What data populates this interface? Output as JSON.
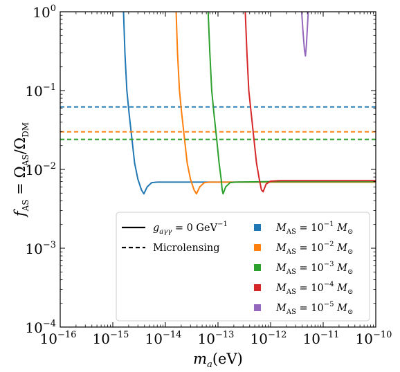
{
  "chart_data": {
    "type": "line",
    "x_axis": {
      "label": "m_a(eV)",
      "scale": "log",
      "range": [
        1e-16,
        1e-10
      ],
      "ticks": [
        {
          "value": 1e-16,
          "base": "10",
          "exp": "−16"
        },
        {
          "value": 1e-15,
          "base": "10",
          "exp": "−15"
        },
        {
          "value": 1e-14,
          "base": "10",
          "exp": "−14"
        },
        {
          "value": 1e-13,
          "base": "10",
          "exp": "−13"
        },
        {
          "value": 1e-12,
          "base": "10",
          "exp": "−12"
        },
        {
          "value": 1e-11,
          "base": "10",
          "exp": "−11"
        },
        {
          "value": 1e-10,
          "base": "10",
          "exp": "−10"
        }
      ]
    },
    "y_axis": {
      "label": "f_AS = Ω_AS/Ω_DM",
      "scale": "log",
      "range": [
        0.0001,
        1
      ],
      "ticks": [
        {
          "value": 0.0001,
          "base": "10",
          "exp": "−4"
        },
        {
          "value": 0.001,
          "base": "10",
          "exp": "−3"
        },
        {
          "value": 0.01,
          "base": "10",
          "exp": "−2"
        },
        {
          "value": 0.1,
          "base": "10",
          "exp": "−1"
        },
        {
          "value": 1,
          "base": "10",
          "exp": "0"
        }
      ]
    },
    "legend": {
      "placement": "bottom-right",
      "style_entries": [
        {
          "label": "g_aγγ = 0 GeV⁻¹",
          "style": "solid"
        },
        {
          "label": "Microlensing",
          "style": "dashed"
        }
      ],
      "mass_entries": [
        {
          "label": "M_AS = 10⁻¹ M_⊙",
          "color": "#1f77b4"
        },
        {
          "label": "M_AS = 10⁻² M_⊙",
          "color": "#ff7f0e"
        },
        {
          "label": "M_AS = 10⁻³ M_⊙",
          "color": "#2ca02c"
        },
        {
          "label": "M_AS = 10⁻⁴ M_⊙",
          "color": "#d62728"
        },
        {
          "label": "M_AS = 10⁻⁵ M_⊙",
          "color": "#9467bd"
        }
      ]
    },
    "series": [
      {
        "name": "M_AS = 10⁻¹ M_⊙",
        "color": "#1f77b4",
        "microlensing": 0.062,
        "solid": [
          [
            1.6e-15,
            1.0
          ],
          [
            1.7e-15,
            0.3
          ],
          [
            1.85e-15,
            0.1
          ],
          [
            2.05e-15,
            0.05
          ],
          [
            2.3e-15,
            0.025
          ],
          [
            2.6e-15,
            0.012
          ],
          [
            3e-15,
            0.0075
          ],
          [
            3.5e-15,
            0.0055
          ],
          [
            3.9e-15,
            0.0049
          ],
          [
            4.5e-15,
            0.006
          ],
          [
            5.5e-15,
            0.0068
          ],
          [
            7e-15,
            0.0069
          ],
          [
            1e-13,
            0.0069
          ],
          [
            1e-10,
            0.0069
          ]
        ]
      },
      {
        "name": "M_AS = 10⁻² M_⊙",
        "color": "#ff7f0e",
        "microlensing": 0.03,
        "solid": [
          [
            1.6e-14,
            1.0
          ],
          [
            1.7e-14,
            0.3
          ],
          [
            1.85e-14,
            0.1
          ],
          [
            2.05e-14,
            0.05
          ],
          [
            2.3e-14,
            0.025
          ],
          [
            2.6e-14,
            0.012
          ],
          [
            3e-14,
            0.0075
          ],
          [
            3.5e-14,
            0.0055
          ],
          [
            3.9e-14,
            0.0049
          ],
          [
            4.5e-14,
            0.006
          ],
          [
            5.5e-14,
            0.0068
          ],
          [
            7e-14,
            0.0069
          ],
          [
            1e-12,
            0.0069
          ],
          [
            1e-10,
            0.0069
          ]
        ]
      },
      {
        "name": "M_AS = 10⁻³ M_⊙",
        "color": "#2ca02c",
        "microlensing": 0.024,
        "solid": [
          [
            6.5e-14,
            1.0
          ],
          [
            7e-14,
            0.3
          ],
          [
            7.6e-14,
            0.1
          ],
          [
            8.4e-14,
            0.05
          ],
          [
            9.4e-14,
            0.025
          ],
          [
            1.05e-13,
            0.012
          ],
          [
            1.15e-13,
            0.0075
          ],
          [
            1.2e-13,
            0.0055
          ],
          [
            1.25e-13,
            0.0049
          ],
          [
            1.4e-13,
            0.006
          ],
          [
            1.7e-13,
            0.0068
          ],
          [
            2.2e-13,
            0.0069
          ],
          [
            1e-12,
            0.007
          ],
          [
            1e-10,
            0.007
          ]
        ]
      },
      {
        "name": "M_AS = 10⁻⁴ M_⊙",
        "color": "#d62728",
        "microlensing": null,
        "solid": [
          [
            3.3e-13,
            1.0
          ],
          [
            3.55e-13,
            0.3
          ],
          [
            3.85e-13,
            0.1
          ],
          [
            4.3e-13,
            0.05
          ],
          [
            4.8e-13,
            0.025
          ],
          [
            5.4e-13,
            0.012
          ],
          [
            6.1e-13,
            0.0075
          ],
          [
            6.7e-13,
            0.0055
          ],
          [
            7.2e-13,
            0.0052
          ],
          [
            8.2e-13,
            0.0065
          ],
          [
            1e-12,
            0.0071
          ],
          [
            1.5e-12,
            0.0072
          ],
          [
            1e-10,
            0.0072
          ]
        ]
      },
      {
        "name": "M_AS = 10⁻⁵ M_⊙",
        "color": "#9467bd",
        "microlensing": null,
        "solid": [
          [
            3.9e-12,
            1.0
          ],
          [
            4.1e-12,
            0.6
          ],
          [
            4.4e-12,
            0.33
          ],
          [
            4.6e-12,
            0.275
          ],
          [
            4.8e-12,
            0.38
          ],
          [
            5e-12,
            0.62
          ],
          [
            5.2e-12,
            1.0
          ]
        ]
      }
    ]
  }
}
